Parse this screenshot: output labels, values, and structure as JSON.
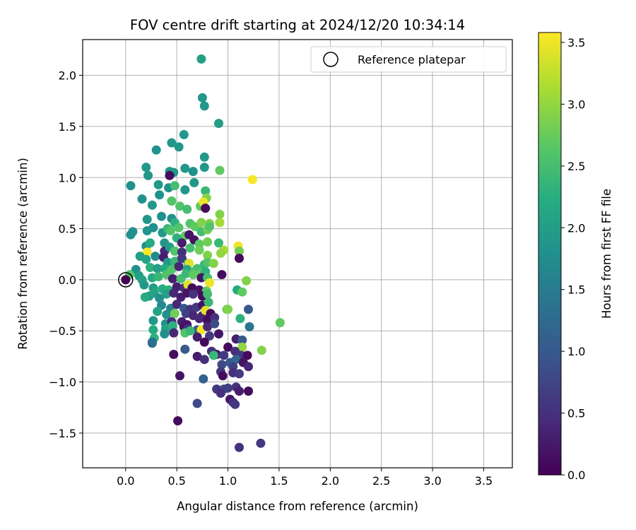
{
  "chart_data": {
    "type": "scatter",
    "title": "FOV centre drift starting at 2024/12/20 10:34:14",
    "xlabel": "Angular distance from reference (arcmin)",
    "ylabel": "Rotation from reference (arcmin)",
    "xlim": [
      -0.42,
      3.78
    ],
    "ylim": [
      -1.84,
      2.35
    ],
    "xticks": [
      0.0,
      0.5,
      1.0,
      1.5,
      2.0,
      2.5,
      3.0,
      3.5
    ],
    "xtick_labels": [
      "0.0",
      "0.5",
      "1.0",
      "1.5",
      "2.0",
      "2.5",
      "3.0",
      "3.5"
    ],
    "yticks": [
      -1.5,
      -1.0,
      -0.5,
      0.0,
      0.5,
      1.0,
      1.5,
      2.0
    ],
    "ytick_labels": [
      "−1.5",
      "−1.0",
      "−0.5",
      "0.0",
      "0.5",
      "1.0",
      "1.5",
      "2.0"
    ],
    "grid": true,
    "legend": {
      "placement": "top-right",
      "entries": [
        "Reference platepar"
      ]
    },
    "reference_point": {
      "name": "Reference platepar",
      "x": 0.0,
      "y": 0.0
    },
    "colorbar": {
      "label": "Hours from first FF file",
      "colormap": "viridis",
      "range": [
        0.0,
        3.58
      ],
      "ticks": [
        0.0,
        0.5,
        1.0,
        1.5,
        2.0,
        2.5,
        3.0,
        3.5
      ],
      "tick_labels": [
        "0.0",
        "0.5",
        "1.0",
        "1.5",
        "2.0",
        "2.5",
        "3.0",
        "3.5"
      ]
    },
    "points": [
      [
        0.74,
        2.16,
        2.0
      ],
      [
        0.75,
        1.78,
        1.9
      ],
      [
        0.77,
        1.7,
        1.9
      ],
      [
        0.91,
        1.53,
        2.0
      ],
      [
        0.57,
        1.42,
        1.9
      ],
      [
        0.45,
        1.34,
        1.9
      ],
      [
        0.52,
        1.3,
        1.9
      ],
      [
        0.3,
        1.27,
        1.8
      ],
      [
        0.77,
        1.2,
        1.9
      ],
      [
        0.2,
        1.1,
        1.9
      ],
      [
        0.43,
        1.06,
        1.9
      ],
      [
        0.58,
        1.09,
        1.9
      ],
      [
        0.66,
        1.06,
        1.8
      ],
      [
        0.77,
        1.1,
        1.9
      ],
      [
        0.92,
        1.07,
        2.7
      ],
      [
        0.22,
        1.02,
        1.9
      ],
      [
        0.47,
        1.05,
        1.9
      ],
      [
        0.43,
        1.02,
        0.1
      ],
      [
        1.24,
        0.98,
        3.55
      ],
      [
        0.05,
        0.92,
        1.8
      ],
      [
        0.32,
        0.93,
        1.9
      ],
      [
        0.42,
        0.9,
        1.8
      ],
      [
        0.48,
        0.92,
        2.5
      ],
      [
        0.58,
        0.88,
        1.9
      ],
      [
        0.67,
        0.95,
        1.9
      ],
      [
        0.78,
        0.87,
        2.4
      ],
      [
        0.16,
        0.79,
        1.8
      ],
      [
        0.33,
        0.83,
        1.8
      ],
      [
        0.26,
        0.73,
        1.9
      ],
      [
        0.45,
        0.77,
        2.6
      ],
      [
        0.53,
        0.72,
        2.6
      ],
      [
        0.6,
        0.69,
        2.5
      ],
      [
        0.73,
        0.72,
        2.7
      ],
      [
        0.79,
        0.8,
        2.9
      ],
      [
        0.76,
        0.76,
        3.5
      ],
      [
        0.78,
        0.7,
        0.1
      ],
      [
        0.92,
        0.64,
        2.9
      ],
      [
        0.21,
        0.59,
        1.9
      ],
      [
        0.35,
        0.62,
        1.8
      ],
      [
        0.45,
        0.6,
        1.8
      ],
      [
        0.48,
        0.56,
        2.3
      ],
      [
        0.52,
        0.51,
        2.6
      ],
      [
        0.63,
        0.55,
        2.6
      ],
      [
        0.68,
        0.52,
        2.7
      ],
      [
        0.74,
        0.56,
        2.9
      ],
      [
        0.82,
        0.55,
        2.9
      ],
      [
        0.92,
        0.56,
        3.1
      ],
      [
        0.05,
        0.44,
        1.8
      ],
      [
        0.07,
        0.47,
        1.8
      ],
      [
        0.21,
        0.48,
        1.9
      ],
      [
        0.27,
        0.51,
        1.8
      ],
      [
        0.36,
        0.46,
        1.9
      ],
      [
        0.41,
        0.5,
        2.4
      ],
      [
        0.44,
        0.48,
        2.6
      ],
      [
        0.58,
        0.43,
        2.7
      ],
      [
        0.62,
        0.44,
        0.2
      ],
      [
        0.74,
        0.47,
        2.5
      ],
      [
        0.8,
        0.49,
        2.8
      ],
      [
        0.82,
        0.52,
        2.6
      ],
      [
        0.38,
        0.36,
        1.9
      ],
      [
        0.5,
        0.41,
        2.3
      ],
      [
        0.55,
        0.36,
        0.3
      ],
      [
        0.67,
        0.39,
        0.2
      ],
      [
        0.72,
        0.35,
        2.7
      ],
      [
        0.8,
        0.37,
        2.8
      ],
      [
        0.91,
        0.36,
        2.4
      ],
      [
        0.96,
        0.29,
        3.1
      ],
      [
        1.1,
        0.33,
        3.5
      ],
      [
        1.11,
        0.28,
        2.8
      ],
      [
        0.2,
        0.33,
        1.8
      ],
      [
        0.24,
        0.36,
        2.2
      ],
      [
        0.21,
        0.27,
        3.6
      ],
      [
        0.38,
        0.28,
        0.4
      ],
      [
        0.43,
        0.32,
        2.0
      ],
      [
        0.48,
        0.28,
        2.6
      ],
      [
        0.55,
        0.27,
        0.5
      ],
      [
        0.63,
        0.31,
        2.5
      ],
      [
        0.72,
        0.29,
        2.8
      ],
      [
        0.8,
        0.24,
        2.9
      ],
      [
        0.93,
        0.26,
        3.0
      ],
      [
        0.14,
        0.23,
        2.0
      ],
      [
        0.2,
        0.2,
        2.1
      ],
      [
        0.29,
        0.23,
        1.7
      ],
      [
        0.37,
        0.22,
        0.3
      ],
      [
        0.41,
        0.17,
        1.9
      ],
      [
        0.48,
        0.18,
        2.4
      ],
      [
        0.55,
        0.21,
        0.6
      ],
      [
        0.61,
        0.16,
        2.1
      ],
      [
        0.62,
        0.16,
        3.4
      ],
      [
        0.7,
        0.11,
        2.5
      ],
      [
        0.77,
        0.15,
        2.4
      ],
      [
        0.8,
        0.17,
        2.6
      ],
      [
        0.86,
        0.16,
        2.9
      ],
      [
        0.1,
        0.1,
        1.8
      ],
      [
        0.24,
        0.12,
        2.3
      ],
      [
        0.31,
        0.11,
        2.0
      ],
      [
        0.38,
        0.11,
        2.2
      ],
      [
        0.45,
        0.1,
        2.6
      ],
      [
        0.52,
        0.13,
        0.4
      ],
      [
        0.6,
        0.1,
        2.1
      ],
      [
        0.67,
        0.08,
        2.5
      ],
      [
        0.73,
        0.06,
        2.7
      ],
      [
        0.78,
        0.08,
        2.3
      ],
      [
        0.94,
        0.05,
        0.1
      ],
      [
        1.11,
        0.21,
        0.1
      ],
      [
        0.04,
        0.05,
        2.6
      ],
      [
        0.13,
        0.04,
        2.0
      ],
      [
        0.16,
        0.0,
        2.1
      ],
      [
        0.26,
        0.02,
        2.2
      ],
      [
        0.32,
        0.03,
        2.4
      ],
      [
        0.4,
        0.05,
        2.6
      ],
      [
        0.46,
        0.01,
        0.3
      ],
      [
        0.54,
        0.01,
        2.5
      ],
      [
        0.59,
        0.06,
        2.4
      ],
      [
        0.66,
        0.05,
        2.7
      ],
      [
        0.74,
        0.02,
        0.2
      ],
      [
        0.8,
        0.02,
        2.5
      ],
      [
        1.18,
        -0.01,
        2.9
      ],
      [
        0.18,
        -0.05,
        1.9
      ],
      [
        0.27,
        -0.08,
        2.0
      ],
      [
        0.36,
        -0.09,
        2.2
      ],
      [
        0.42,
        -0.1,
        2.3
      ],
      [
        0.5,
        -0.07,
        0.3
      ],
      [
        0.57,
        -0.08,
        0.5
      ],
      [
        0.61,
        -0.05,
        3.4
      ],
      [
        0.65,
        -0.08,
        0.1
      ],
      [
        0.72,
        -0.1,
        0.2
      ],
      [
        0.79,
        -0.11,
        2.7
      ],
      [
        0.82,
        -0.03,
        3.5
      ],
      [
        1.09,
        -0.1,
        2.2
      ],
      [
        1.14,
        -0.12,
        2.7
      ],
      [
        0.23,
        -0.16,
        1.9
      ],
      [
        0.28,
        -0.13,
        2.1
      ],
      [
        0.33,
        -0.18,
        1.8
      ],
      [
        0.4,
        -0.14,
        2.0
      ],
      [
        0.47,
        -0.13,
        0.4
      ],
      [
        0.54,
        -0.17,
        0.3
      ],
      [
        0.6,
        -0.13,
        0.2
      ],
      [
        0.66,
        -0.14,
        0.5
      ],
      [
        0.75,
        -0.16,
        0.1
      ],
      [
        0.8,
        -0.14,
        2.5
      ],
      [
        0.19,
        -0.17,
        2.2
      ],
      [
        0.35,
        -0.25,
        1.7
      ],
      [
        0.44,
        -0.28,
        1.6
      ],
      [
        0.5,
        -0.24,
        0.4
      ],
      [
        0.57,
        -0.28,
        1.0
      ],
      [
        0.63,
        -0.29,
        0.5
      ],
      [
        0.69,
        -0.27,
        0.6
      ],
      [
        0.75,
        -0.25,
        0.2
      ],
      [
        0.81,
        -0.22,
        2.4
      ],
      [
        0.31,
        -0.31,
        2.1
      ],
      [
        0.4,
        -0.34,
        1.8
      ],
      [
        0.48,
        -0.33,
        2.8
      ],
      [
        0.59,
        -0.33,
        0.7
      ],
      [
        0.66,
        -0.35,
        0.4
      ],
      [
        0.75,
        -0.35,
        0.3
      ],
      [
        0.78,
        -0.3,
        3.4
      ],
      [
        0.83,
        -0.33,
        0.1
      ],
      [
        0.99,
        -0.29,
        2.7
      ],
      [
        1.12,
        -0.38,
        2.3
      ],
      [
        1.2,
        -0.29,
        1.0
      ],
      [
        0.27,
        -0.4,
        1.9
      ],
      [
        0.39,
        -0.43,
        1.8
      ],
      [
        0.45,
        -0.41,
        0.5
      ],
      [
        0.55,
        -0.41,
        0.3
      ],
      [
        0.6,
        -0.44,
        0.2
      ],
      [
        0.72,
        -0.38,
        0.4
      ],
      [
        0.8,
        -0.4,
        0.1
      ],
      [
        0.87,
        -0.37,
        0.5
      ],
      [
        0.27,
        -0.49,
        2.2
      ],
      [
        0.39,
        -0.48,
        2.1
      ],
      [
        0.46,
        -0.45,
        2.3
      ],
      [
        0.57,
        -0.46,
        0.2
      ],
      [
        0.61,
        -0.48,
        0.5
      ],
      [
        0.7,
        -0.49,
        1.0
      ],
      [
        0.74,
        -0.49,
        3.5
      ],
      [
        0.8,
        -0.46,
        0.4
      ],
      [
        0.87,
        -0.43,
        0.8
      ],
      [
        1.21,
        -0.46,
        1.4
      ],
      [
        0.28,
        -0.57,
        2.3
      ],
      [
        0.38,
        -0.53,
        1.8
      ],
      [
        0.47,
        -0.52,
        0.4
      ],
      [
        0.58,
        -0.52,
        2.6
      ],
      [
        0.63,
        -0.5,
        2.4
      ],
      [
        0.7,
        -0.56,
        0.3
      ],
      [
        0.82,
        -0.55,
        0.6
      ],
      [
        0.91,
        -0.53,
        0.2
      ],
      [
        1.08,
        -0.58,
        0.3
      ],
      [
        1.14,
        -0.59,
        1.0
      ],
      [
        1.14,
        -0.66,
        3.0
      ],
      [
        0.26,
        -0.61,
        1.4
      ],
      [
        0.26,
        -0.62,
        1.3
      ],
      [
        0.58,
        -0.68,
        1.0
      ],
      [
        0.77,
        -0.61,
        0.1
      ],
      [
        0.84,
        -0.7,
        0.5
      ],
      [
        0.89,
        -0.73,
        0.3
      ],
      [
        1.0,
        -0.66,
        0.1
      ],
      [
        1.07,
        -0.7,
        0.5
      ],
      [
        1.13,
        -0.74,
        0.6
      ],
      [
        1.33,
        -0.69,
        2.9
      ],
      [
        0.47,
        -0.73,
        0.1
      ],
      [
        0.7,
        -0.75,
        0.3
      ],
      [
        0.77,
        -0.78,
        0.5
      ],
      [
        0.86,
        -0.74,
        2.4
      ],
      [
        0.96,
        -0.74,
        0.6
      ],
      [
        1.02,
        -0.81,
        1.0
      ],
      [
        1.08,
        -0.78,
        1.2
      ],
      [
        1.19,
        -0.74,
        0.1
      ],
      [
        1.15,
        -0.81,
        0.2
      ],
      [
        0.94,
        -0.83,
        0.8
      ],
      [
        1.05,
        -0.85,
        0.7
      ],
      [
        1.2,
        -0.85,
        0.4
      ],
      [
        0.53,
        -0.94,
        0.2
      ],
      [
        0.76,
        -0.97,
        1.1
      ],
      [
        0.93,
        -0.9,
        0.6
      ],
      [
        0.95,
        -0.94,
        0.1
      ],
      [
        1.05,
        -0.91,
        0.5
      ],
      [
        1.11,
        -0.92,
        0.6
      ],
      [
        0.89,
        -1.07,
        0.6
      ],
      [
        0.96,
        -1.07,
        0.8
      ],
      [
        1.0,
        -1.06,
        0.7
      ],
      [
        1.08,
        -1.05,
        0.5
      ],
      [
        1.11,
        -1.09,
        0.3
      ],
      [
        1.2,
        -1.09,
        0.1
      ],
      [
        0.93,
        -1.11,
        0.5
      ],
      [
        1.02,
        -1.17,
        0.2
      ],
      [
        1.05,
        -1.2,
        0.5
      ],
      [
        1.07,
        -1.22,
        0.6
      ],
      [
        0.7,
        -1.21,
        0.8
      ],
      [
        0.51,
        -1.38,
        0.1
      ],
      [
        1.11,
        -1.64,
        0.5
      ],
      [
        1.32,
        -1.6,
        0.6
      ],
      [
        1.51,
        -0.42,
        2.7
      ],
      [
        1.0,
        -0.29,
        2.9
      ]
    ]
  }
}
